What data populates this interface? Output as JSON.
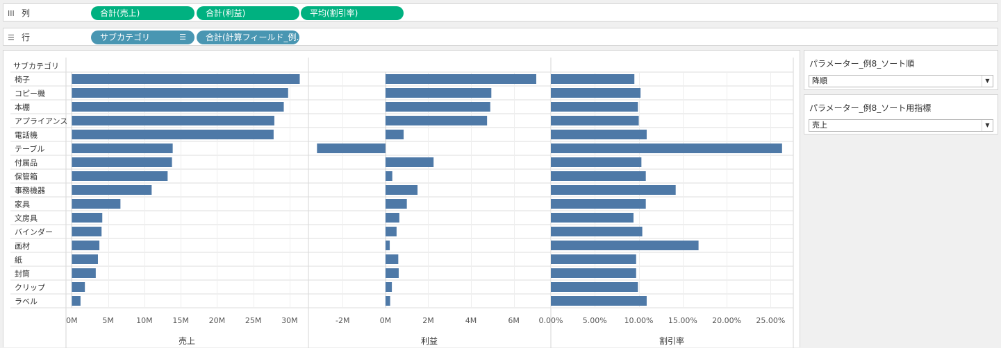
{
  "columns_shelf": {
    "label": "列",
    "icon": "columns-icon",
    "pills": [
      "合計(売上)",
      "合計(利益)",
      "平均(割引率)"
    ]
  },
  "rows_shelf": {
    "label": "行",
    "icon": "rows-icon",
    "pills": [
      "サブカテゴリ",
      "合計(計算フィールド_例.."
    ]
  },
  "colors": {
    "bar": "#4e79a7",
    "pill_measure": "#00b180",
    "pill_dimension": "#4996b2"
  },
  "parameters": [
    {
      "title": "パラメーター_例8_ソート順",
      "value": "降順"
    },
    {
      "title": "パラメーター_例8_ソート用指標",
      "value": "売上"
    }
  ],
  "chart_data": {
    "type": "bar",
    "orientation": "horizontal",
    "row_header": "サブカテゴリ",
    "categories": [
      "椅子",
      "コピー機",
      "本棚",
      "アプライアンス",
      "電話機",
      "テーブル",
      "付属品",
      "保管箱",
      "事務機器",
      "家具",
      "文房具",
      "バインダー",
      "画材",
      "紙",
      "封筒",
      "クリップ",
      "ラベル"
    ],
    "panes": [
      {
        "name": "売上",
        "xlabel": "売上",
        "unit": "M",
        "xlim": [
          -0.8,
          32.5
        ],
        "ticks": [
          0,
          5,
          10,
          15,
          20,
          25,
          30
        ],
        "tick_labels": [
          "0M",
          "5M",
          "10M",
          "15M",
          "20M",
          "25M",
          "30M"
        ],
        "values": [
          31.4,
          29.8,
          29.2,
          27.9,
          27.8,
          13.9,
          13.8,
          13.2,
          11.0,
          6.7,
          4.2,
          4.1,
          3.8,
          3.6,
          3.3,
          1.8,
          1.2
        ]
      },
      {
        "name": "利益",
        "xlabel": "利益",
        "unit": "M",
        "xlim": [
          -3.6,
          7.7
        ],
        "ticks": [
          -2,
          0,
          2,
          4,
          6
        ],
        "tick_labels": [
          "-2M",
          "0M",
          "2M",
          "4M",
          "6M"
        ],
        "values": [
          7.05,
          4.95,
          4.9,
          4.75,
          0.85,
          -3.2,
          2.25,
          0.32,
          1.5,
          1.0,
          0.65,
          0.52,
          0.2,
          0.6,
          0.62,
          0.3,
          0.22
        ]
      },
      {
        "name": "割引率",
        "xlabel": "割引率",
        "unit": "%",
        "xlim": [
          0,
          27.5
        ],
        "ticks": [
          0,
          5,
          10,
          15,
          20,
          25
        ],
        "tick_labels": [
          "0.00%",
          "5.00%",
          "10.00%",
          "15.00%",
          "20.00%",
          "25.00%"
        ],
        "values": [
          9.5,
          10.2,
          9.9,
          10.0,
          10.9,
          26.3,
          10.3,
          10.8,
          14.2,
          10.8,
          9.4,
          10.4,
          16.8,
          9.7,
          9.7,
          9.9,
          10.9
        ]
      }
    ]
  }
}
